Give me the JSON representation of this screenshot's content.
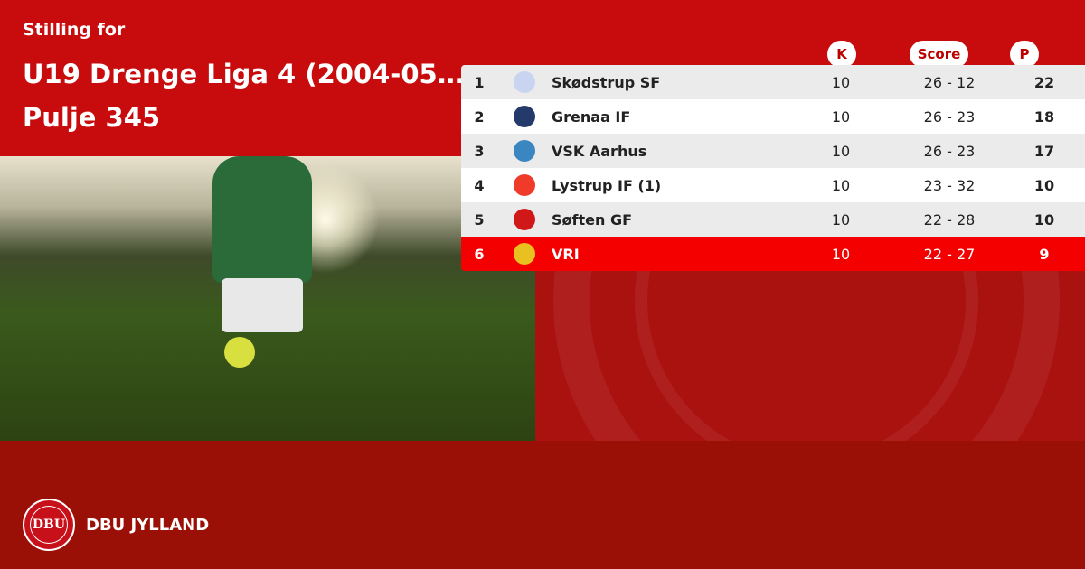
{
  "header": {
    "subtitle": "Stilling for",
    "title_line1": "U19 Drenge Liga 4 (2004-05...",
    "title_line2": "Pulje 345"
  },
  "columns": {
    "k": "K",
    "score": "Score",
    "p": "P"
  },
  "rows": [
    {
      "pos": "1",
      "team": "Skødstrup SF",
      "k": "10",
      "score": "26 - 12",
      "p": "22",
      "logo_color": "#c8d4f0"
    },
    {
      "pos": "2",
      "team": "Grenaa IF",
      "k": "10",
      "score": "26 - 23",
      "p": "18",
      "logo_color": "#243a6a"
    },
    {
      "pos": "3",
      "team": "VSK Aarhus",
      "k": "10",
      "score": "26 - 23",
      "p": "17",
      "logo_color": "#3a86c0"
    },
    {
      "pos": "4",
      "team": "Lystrup IF (1)",
      "k": "10",
      "score": "23 - 32",
      "p": "10",
      "logo_color": "#f03a2a"
    },
    {
      "pos": "5",
      "team": "Søften GF",
      "k": "10",
      "score": "22 - 28",
      "p": "10",
      "logo_color": "#d01818"
    },
    {
      "pos": "6",
      "team": "VRI",
      "k": "10",
      "score": "22 - 27",
      "p": "9",
      "logo_color": "#e8c020",
      "highlight": true
    }
  ],
  "footer": {
    "brand": "DBU JYLLAND",
    "seal_text": "DBU"
  },
  "colors": {
    "primary": "#c80c0e",
    "highlight": "#f40000",
    "dark": "#9b1006"
  }
}
